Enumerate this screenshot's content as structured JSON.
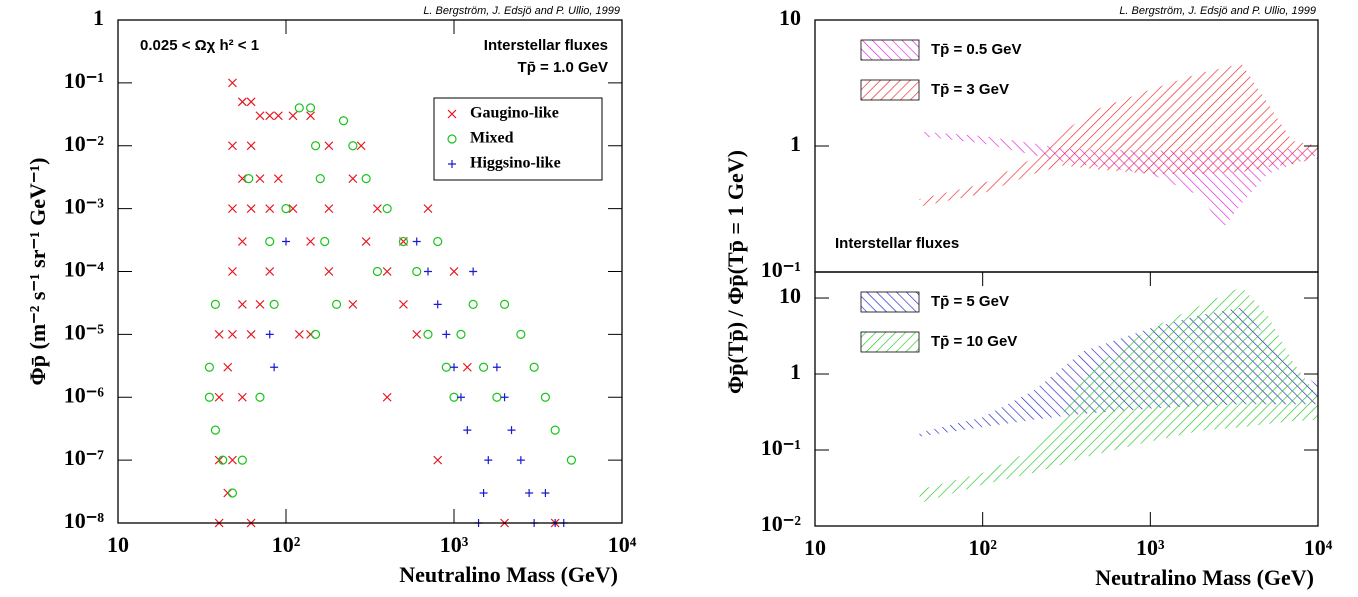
{
  "chart_data": [
    {
      "type": "scatter",
      "credit": "L. Bergström, J. Edsjö and P. Ullio, 1999",
      "annotations": [
        "0.025 < Ωχ h² < 1",
        "Interstellar fluxes",
        "Tp̄ = 1.0 GeV"
      ],
      "xlabel": "Neutralino Mass (GeV)",
      "ylabel": "Φp̄ (m⁻² s⁻¹ sr⁻¹ GeV⁻¹)",
      "xlog": true,
      "ylog": true,
      "legend": "upper right",
      "xlim": [
        10,
        10000
      ],
      "xticks": [
        10,
        {
          "value": 100,
          "label": "10²"
        },
        {
          "value": 1000,
          "label": "10³"
        },
        {
          "value": 10000,
          "label": "10⁴"
        }
      ],
      "ylim": [
        1e-08,
        1
      ],
      "yticks": [
        {
          "value": 1e-08,
          "label": "10⁻⁸"
        },
        {
          "value": 1e-07,
          "label": "10⁻⁷"
        },
        {
          "value": 1e-06,
          "label": "10⁻⁶"
        },
        {
          "value": 1e-05,
          "label": "10⁻⁵"
        },
        {
          "value": 0.0001,
          "label": "10⁻⁴"
        },
        {
          "value": 0.001,
          "label": "10⁻³"
        },
        {
          "value": 0.01,
          "label": "10⁻²"
        },
        {
          "value": 0.1,
          "label": "10⁻¹"
        },
        1
      ],
      "series": [
        {
          "name": "Gaugino-like",
          "marker": "x",
          "color": "#e8101a",
          "x": [
            40,
            40,
            40,
            40,
            45,
            45,
            48,
            48,
            48,
            48,
            48,
            48,
            55,
            55,
            55,
            55,
            55,
            62,
            62,
            62,
            62,
            62,
            70,
            70,
            70,
            80,
            80,
            80,
            90,
            90,
            110,
            110,
            120,
            140,
            140,
            140,
            180,
            180,
            180,
            250,
            250,
            280,
            300,
            350,
            400,
            400,
            500,
            500,
            600,
            700,
            800,
            1000,
            1200,
            2000,
            4000
          ],
          "values": [
            1e-08,
            1e-07,
            1e-06,
            1e-05,
            3e-08,
            3e-06,
            0.1,
            0.01,
            0.001,
            0.0001,
            1e-05,
            1e-07,
            0.05,
            0.003,
            0.0003,
            3e-05,
            1e-06,
            0.05,
            0.01,
            0.001,
            1e-05,
            1e-08,
            0.03,
            0.003,
            3e-05,
            0.03,
            0.001,
            0.0001,
            0.03,
            0.003,
            0.03,
            0.001,
            1e-05,
            0.03,
            0.0003,
            1e-05,
            0.01,
            0.001,
            0.0001,
            0.003,
            3e-05,
            0.01,
            0.0003,
            0.001,
            0.0001,
            1e-06,
            0.0003,
            3e-05,
            1e-05,
            0.001,
            1e-07,
            0.0001,
            3e-06,
            1e-08,
            1e-08
          ]
        },
        {
          "name": "Mixed",
          "marker": "o",
          "color": "#19c419",
          "x": [
            35,
            35,
            38,
            38,
            42,
            48,
            55,
            60,
            70,
            80,
            85,
            100,
            120,
            140,
            150,
            160,
            170,
            200,
            220,
            250,
            300,
            350,
            400,
            500,
            600,
            700,
            800,
            900,
            1000,
            1100,
            1300,
            1500,
            1800,
            2000,
            2500,
            3000,
            3500,
            4000,
            5000,
            150
          ],
          "values": [
            3e-06,
            1e-06,
            3e-07,
            3e-05,
            1e-07,
            3e-08,
            1e-07,
            0.003,
            1e-06,
            0.0003,
            3e-05,
            0.001,
            0.04,
            0.04,
            0.01,
            0.003,
            0.0003,
            3e-05,
            0.025,
            0.01,
            0.003,
            0.0001,
            0.001,
            0.0003,
            0.0001,
            1e-05,
            0.0003,
            3e-06,
            1e-06,
            1e-05,
            3e-05,
            3e-06,
            1e-06,
            3e-05,
            1e-05,
            3e-06,
            1e-06,
            3e-07,
            1e-07,
            1e-05
          ]
        },
        {
          "name": "Higgsino-like",
          "marker": "+",
          "color": "#1a1ad0",
          "x": [
            80,
            85,
            100,
            600,
            700,
            800,
            900,
            1000,
            1100,
            1200,
            1300,
            1500,
            1600,
            1800,
            2000,
            2200,
            2500,
            2800,
            3000,
            3500,
            4000,
            4500,
            1400
          ],
          "values": [
            1e-05,
            3e-06,
            0.0003,
            0.0003,
            0.0001,
            3e-05,
            1e-05,
            3e-06,
            1e-06,
            3e-07,
            0.0001,
            3e-08,
            1e-07,
            3e-06,
            1e-06,
            3e-07,
            1e-07,
            3e-08,
            1e-08,
            3e-08,
            1e-08,
            1e-08,
            1e-08
          ]
        }
      ]
    },
    {
      "type": "band",
      "credit": "L. Bergström, J. Edsjö and P. Ullio, 1999",
      "annotations": [
        "Interstellar fluxes"
      ],
      "ylabel": "Φp̄(Tp̄) / Φp̄(Tp̄ = 1 GeV)",
      "xlog": true,
      "ylog": true,
      "legend": "upper left",
      "xlim": [
        10,
        10000
      ],
      "ylim": [
        0.1,
        10
      ],
      "yticks": [
        {
          "value": 0.1,
          "label": "10⁻¹"
        },
        1,
        10
      ],
      "series": [
        {
          "name": "Tp̄ = 0.5 GeV",
          "color": "#e020e0",
          "x": [
            42,
            100,
            200,
            300,
            1000,
            2000,
            2700,
            3500,
            5000,
            10000
          ],
          "upper": [
            1.3,
            1.2,
            1.05,
            0.95,
            0.92,
            0.93,
            0.94,
            0.95,
            0.95,
            0.95
          ],
          "lower": [
            1.2,
            1.05,
            0.85,
            0.75,
            0.6,
            0.4,
            0.22,
            0.35,
            0.6,
            0.85
          ]
        },
        {
          "name": "Tp̄ = 3 GeV",
          "color": "#ee2020",
          "x": [
            42,
            100,
            200,
            300,
            500,
            1000,
            2000,
            3500,
            5000,
            7000,
            10000
          ],
          "upper": [
            0.38,
            0.5,
            0.8,
            1.3,
            2,
            2.8,
            3.8,
            4.5,
            2.2,
            1.1,
            1.0
          ],
          "lower": [
            0.33,
            0.42,
            0.6,
            0.7,
            0.65,
            0.6,
            0.6,
            0.62,
            0.68,
            0.72,
            0.8
          ]
        }
      ]
    },
    {
      "type": "band",
      "xlabel": "Neutralino Mass (GeV)",
      "xlog": true,
      "ylog": true,
      "legend": "upper left",
      "xlim": [
        10,
        10000
      ],
      "xticks": [
        10,
        {
          "value": 100,
          "label": "10²"
        },
        {
          "value": 1000,
          "label": "10³"
        },
        {
          "value": 10000,
          "label": "10⁴"
        }
      ],
      "ylim": [
        0.01,
        22
      ],
      "yticks": [
        {
          "value": 0.01,
          "label": "10⁻²"
        },
        {
          "value": 0.1,
          "label": "10⁻¹"
        },
        1,
        10
      ],
      "series": [
        {
          "name": "Tp̄ = 5 GeV",
          "color": "#2020c8",
          "x": [
            42,
            100,
            200,
            400,
            1000,
            2000,
            3500,
            5000,
            7000,
            10000
          ],
          "upper": [
            0.17,
            0.27,
            0.6,
            2,
            4,
            6,
            7.5,
            3,
            1.3,
            0.7
          ],
          "lower": [
            0.15,
            0.2,
            0.25,
            0.3,
            0.35,
            0.38,
            0.4,
            0.4,
            0.4,
            0.4
          ]
        },
        {
          "name": "Tp̄ = 10 GeV",
          "color": "#20c820",
          "x": [
            42,
            100,
            200,
            300,
            400,
            1000,
            2000,
            3500,
            5000,
            7000,
            10000
          ],
          "upper": [
            0.03,
            0.05,
            0.1,
            0.3,
            1,
            4,
            8,
            14,
            6,
            1.5,
            0.5
          ],
          "lower": [
            0.02,
            0.035,
            0.05,
            0.065,
            0.08,
            0.13,
            0.18,
            0.2,
            0.22,
            0.24,
            0.25
          ]
        }
      ]
    }
  ]
}
